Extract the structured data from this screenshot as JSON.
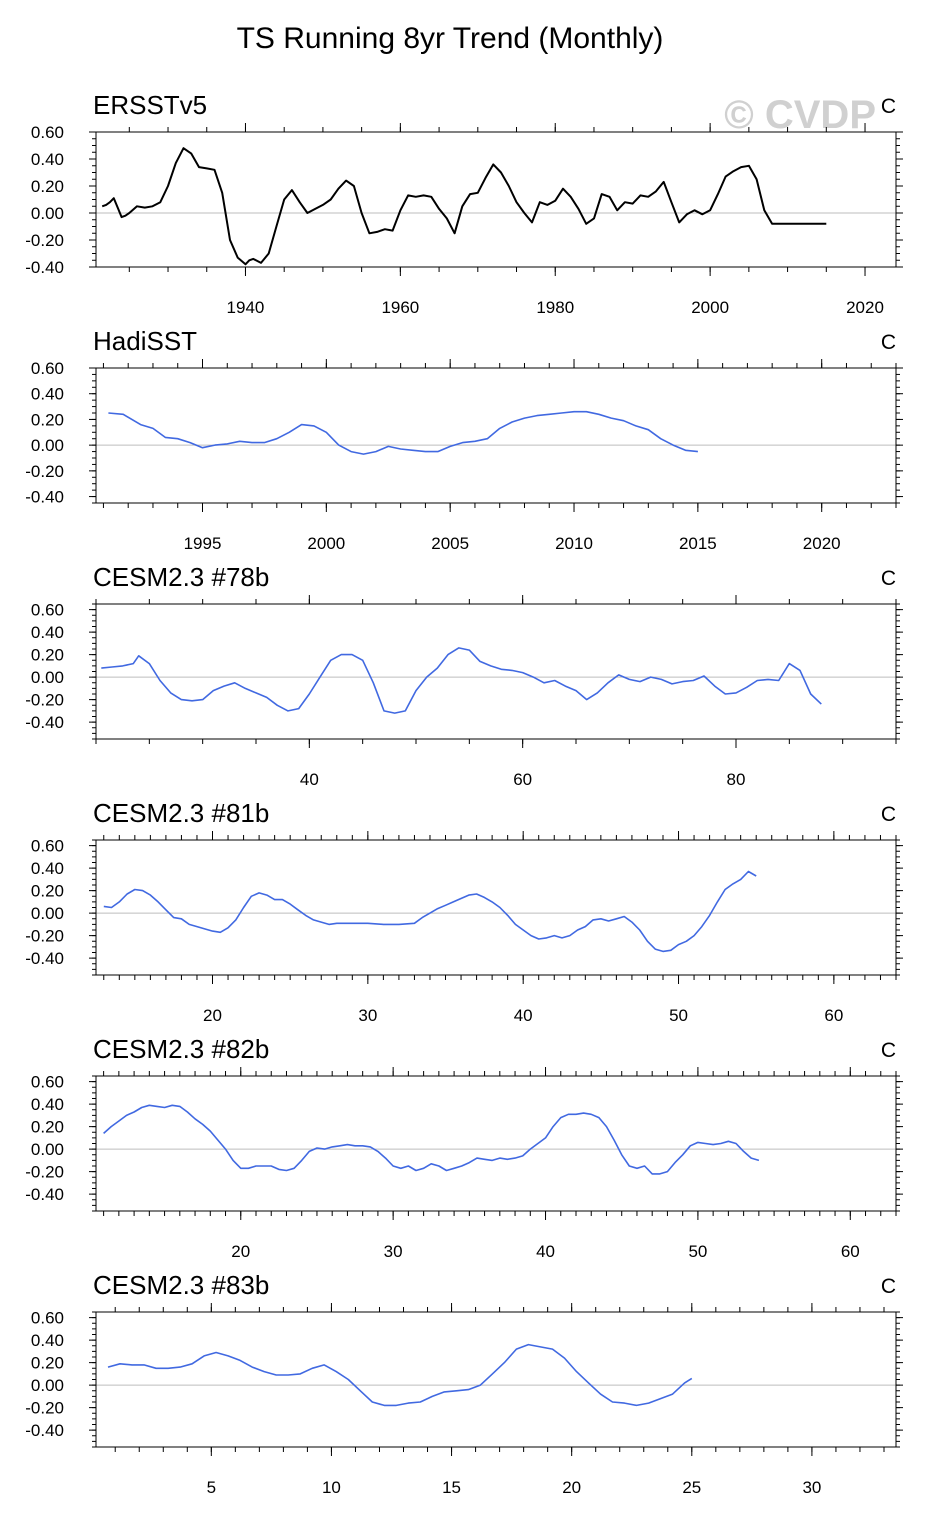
{
  "title": "TS Running 8yr Trend (Monthly)",
  "watermark": "© CVDP",
  "chart_data": [
    {
      "type": "line",
      "title": "ERSSTv5",
      "units": "C",
      "line_color": "#000000",
      "xlim": [
        1920.7,
        2024
      ],
      "ylim": [
        -0.4,
        0.6
      ],
      "yticks": [
        -0.4,
        -0.2,
        0.0,
        0.2,
        0.4,
        0.6
      ],
      "ytick_labels": [
        "-0.40",
        "-0.20",
        "0.00",
        "0.20",
        "0.40",
        "0.60"
      ],
      "xticks": [
        1940,
        1960,
        1980,
        2000,
        2020
      ],
      "xtick_labels": [
        "1940",
        "1960",
        "1980",
        "2000",
        "2020"
      ],
      "x_minor_step": 5,
      "x": [
        1921.5,
        1922,
        1922.5,
        1923,
        1923.5,
        1924,
        1924.5,
        1925,
        1926,
        1927,
        1928,
        1929,
        1930,
        1931,
        1932,
        1933,
        1934,
        1935,
        1936,
        1937,
        1938,
        1939,
        1940,
        1940.5,
        1941,
        1942,
        1943,
        1944,
        1945,
        1946,
        1947,
        1948,
        1949,
        1950,
        1951,
        1952,
        1953,
        1954,
        1955,
        1956,
        1957,
        1958,
        1959,
        1960,
        1961,
        1962,
        1963,
        1964,
        1965,
        1966,
        1967,
        1968,
        1969,
        1970,
        1971,
        1972,
        1973,
        1974,
        1975,
        1976,
        1977,
        1978,
        1979,
        1980,
        1981,
        1982,
        1983,
        1984,
        1985,
        1986,
        1987,
        1988,
        1989,
        1990,
        1991,
        1992,
        1993,
        1994,
        1995,
        1996,
        1997,
        1998,
        1999,
        2000,
        2001,
        2002,
        2003,
        2004,
        2005,
        2006,
        2007,
        2008,
        2009,
        2010,
        2011,
        2012,
        2013,
        2014,
        2015
      ],
      "y": [
        0.05,
        0.06,
        0.08,
        0.11,
        0.04,
        -0.03,
        -0.02,
        0.0,
        0.05,
        0.04,
        0.05,
        0.08,
        0.2,
        0.37,
        0.48,
        0.44,
        0.34,
        0.33,
        0.32,
        0.15,
        -0.2,
        -0.33,
        -0.38,
        -0.35,
        -0.34,
        -0.37,
        -0.3,
        -0.1,
        0.1,
        0.17,
        0.08,
        0.0,
        0.03,
        0.06,
        0.1,
        0.18,
        0.24,
        0.2,
        0.0,
        -0.15,
        -0.14,
        -0.12,
        -0.13,
        0.02,
        0.13,
        0.12,
        0.13,
        0.12,
        0.03,
        -0.04,
        -0.15,
        0.05,
        0.14,
        0.15,
        0.26,
        0.36,
        0.3,
        0.2,
        0.08,
        0.0,
        -0.07,
        0.08,
        0.06,
        0.09,
        0.18,
        0.12,
        0.03,
        -0.08,
        -0.04,
        0.14,
        0.12,
        0.02,
        0.08,
        0.07,
        0.13,
        0.12,
        0.16,
        0.23,
        0.08,
        -0.07,
        -0.01,
        0.02,
        -0.01,
        0.02,
        0.14,
        0.27,
        0.31,
        0.34,
        0.35,
        0.25,
        0.02,
        -0.08,
        -0.08,
        -0.08,
        -0.08,
        -0.08,
        -0.08,
        -0.08,
        -0.08
      ]
    },
    {
      "type": "line",
      "title": "HadiSST",
      "units": "C",
      "line_color": "#4169e1",
      "xlim": [
        1990.7,
        2023
      ],
      "ylim": [
        -0.45,
        0.6
      ],
      "yticks": [
        -0.4,
        -0.2,
        0.0,
        0.2,
        0.4,
        0.6
      ],
      "ytick_labels": [
        "-0.40",
        "-0.20",
        "0.00",
        "0.20",
        "0.40",
        "0.60"
      ],
      "xticks": [
        1995,
        2000,
        2005,
        2010,
        2015,
        2020
      ],
      "xtick_labels": [
        "1995",
        "2000",
        "2005",
        "2010",
        "2015",
        "2020"
      ],
      "x_minor_step": 1,
      "x": [
        1991.2,
        1991.8,
        1992.5,
        1993,
        1993.5,
        1994,
        1994.5,
        1995,
        1995.5,
        1996,
        1996.5,
        1997,
        1997.5,
        1998,
        1998.5,
        1999,
        1999.5,
        2000,
        2000.5,
        2001,
        2001.5,
        2002,
        2002.5,
        2003,
        2003.5,
        2004,
        2004.5,
        2005,
        2005.5,
        2006,
        2006.5,
        2007,
        2007.5,
        2008,
        2008.5,
        2009,
        2009.5,
        2010,
        2010.5,
        2011,
        2011.5,
        2012,
        2012.5,
        2013,
        2013.5,
        2014,
        2014.5,
        2015
      ],
      "y": [
        0.25,
        0.24,
        0.16,
        0.13,
        0.06,
        0.05,
        0.02,
        -0.02,
        0.0,
        0.01,
        0.03,
        0.02,
        0.02,
        0.05,
        0.1,
        0.16,
        0.15,
        0.1,
        0.0,
        -0.05,
        -0.07,
        -0.05,
        -0.01,
        -0.03,
        -0.04,
        -0.05,
        -0.05,
        -0.01,
        0.02,
        0.03,
        0.05,
        0.13,
        0.18,
        0.21,
        0.23,
        0.24,
        0.25,
        0.26,
        0.26,
        0.24,
        0.21,
        0.19,
        0.15,
        0.12,
        0.05,
        0.0,
        -0.04,
        -0.05
      ]
    },
    {
      "type": "line",
      "title": "CESM2.3 #78b",
      "units": "C",
      "line_color": "#4169e1",
      "xlim": [
        20,
        95
      ],
      "ylim": [
        -0.55,
        0.65
      ],
      "yticks": [
        -0.4,
        -0.2,
        0.0,
        0.2,
        0.4,
        0.6
      ],
      "ytick_labels": [
        "-0.40",
        "-0.20",
        "0.00",
        "0.20",
        "0.40",
        "0.60"
      ],
      "xticks": [
        40,
        60,
        80
      ],
      "xtick_labels": [
        "40",
        "60",
        "80"
      ],
      "x_minor_step": 5,
      "x": [
        20.5,
        21.5,
        22.5,
        23.5,
        24,
        25,
        26,
        27,
        28,
        29,
        30,
        31,
        32,
        33,
        34,
        35,
        36,
        37,
        38,
        39,
        40,
        41,
        42,
        43,
        44,
        45,
        46,
        47,
        48,
        49,
        50,
        51,
        52,
        53,
        54,
        55,
        56,
        57,
        58,
        59,
        60,
        61,
        62,
        63,
        64,
        65,
        66,
        67,
        68,
        69,
        70,
        71,
        72,
        73,
        74,
        75,
        76,
        77,
        78,
        79,
        80,
        81,
        82,
        83,
        84,
        85,
        86,
        87,
        88
      ],
      "y": [
        0.08,
        0.09,
        0.1,
        0.12,
        0.19,
        0.12,
        -0.03,
        -0.14,
        -0.2,
        -0.21,
        -0.2,
        -0.12,
        -0.08,
        -0.05,
        -0.1,
        -0.14,
        -0.18,
        -0.25,
        -0.3,
        -0.28,
        -0.15,
        0.0,
        0.15,
        0.2,
        0.2,
        0.15,
        -0.05,
        -0.3,
        -0.32,
        -0.3,
        -0.12,
        0.0,
        0.08,
        0.2,
        0.26,
        0.24,
        0.14,
        0.1,
        0.07,
        0.06,
        0.04,
        0.0,
        -0.05,
        -0.03,
        -0.08,
        -0.12,
        -0.2,
        -0.14,
        -0.05,
        0.02,
        -0.02,
        -0.04,
        0.0,
        -0.02,
        -0.06,
        -0.04,
        -0.03,
        0.01,
        -0.08,
        -0.15,
        -0.14,
        -0.09,
        -0.03,
        -0.02,
        -0.03,
        0.12,
        0.06,
        -0.15,
        -0.24
      ]
    },
    {
      "type": "line",
      "title": "CESM2.3 #81b",
      "units": "C",
      "line_color": "#4169e1",
      "xlim": [
        12.5,
        64
      ],
      "ylim": [
        -0.55,
        0.65
      ],
      "yticks": [
        -0.4,
        -0.2,
        0.0,
        0.2,
        0.4,
        0.6
      ],
      "ytick_labels": [
        "-0.40",
        "-0.20",
        "0.00",
        "0.20",
        "0.40",
        "0.60"
      ],
      "xticks": [
        20,
        30,
        40,
        50,
        60
      ],
      "xtick_labels": [
        "20",
        "30",
        "40",
        "50",
        "60"
      ],
      "x_minor_step": 1,
      "x": [
        13,
        13.5,
        14,
        14.5,
        15,
        15.5,
        16,
        16.5,
        17,
        17.5,
        18,
        18.5,
        19,
        19.5,
        20,
        20.5,
        21,
        21.5,
        22,
        22.5,
        23,
        23.5,
        24,
        24.5,
        25,
        25.5,
        26,
        26.5,
        27,
        27.5,
        28,
        29,
        30,
        31,
        32,
        33,
        33.5,
        34,
        34.5,
        35,
        35.5,
        36,
        36.5,
        37,
        37.5,
        38,
        38.5,
        39,
        39.5,
        40,
        40.5,
        41,
        41.5,
        42,
        42.5,
        43,
        43.5,
        44,
        44.5,
        45,
        45.5,
        46,
        46.5,
        47,
        47.5,
        48,
        48.5,
        49,
        49.5,
        50,
        50.5,
        51,
        51.5,
        52,
        52.5,
        53,
        53.5,
        54,
        54.5,
        55
      ],
      "y": [
        0.06,
        0.05,
        0.1,
        0.17,
        0.21,
        0.2,
        0.16,
        0.1,
        0.03,
        -0.04,
        -0.05,
        -0.1,
        -0.12,
        -0.14,
        -0.16,
        -0.17,
        -0.13,
        -0.06,
        0.05,
        0.15,
        0.18,
        0.16,
        0.12,
        0.12,
        0.08,
        0.03,
        -0.02,
        -0.06,
        -0.08,
        -0.1,
        -0.09,
        -0.09,
        -0.09,
        -0.1,
        -0.1,
        -0.09,
        -0.04,
        0.0,
        0.04,
        0.07,
        0.1,
        0.13,
        0.16,
        0.17,
        0.14,
        0.1,
        0.05,
        -0.02,
        -0.1,
        -0.15,
        -0.2,
        -0.23,
        -0.22,
        -0.2,
        -0.22,
        -0.2,
        -0.15,
        -0.12,
        -0.06,
        -0.05,
        -0.07,
        -0.05,
        -0.03,
        -0.08,
        -0.15,
        -0.25,
        -0.32,
        -0.34,
        -0.33,
        -0.28,
        -0.25,
        -0.2,
        -0.12,
        -0.02,
        0.1,
        0.21,
        0.26,
        0.3,
        0.37,
        0.33
      ]
    },
    {
      "type": "line",
      "title": "CESM2.3 #82b",
      "units": "C",
      "line_color": "#4169e1",
      "xlim": [
        10.5,
        63
      ],
      "ylim": [
        -0.55,
        0.65
      ],
      "yticks": [
        -0.4,
        -0.2,
        0.0,
        0.2,
        0.4,
        0.6
      ],
      "ytick_labels": [
        "-0.40",
        "-0.20",
        "0.00",
        "0.20",
        "0.40",
        "0.60"
      ],
      "xticks": [
        20,
        30,
        40,
        50,
        60
      ],
      "xtick_labels": [
        "20",
        "30",
        "40",
        "50",
        "60"
      ],
      "x_minor_step": 1,
      "x": [
        11,
        11.5,
        12,
        12.5,
        13,
        13.5,
        14,
        14.5,
        15,
        15.5,
        16,
        16.5,
        17,
        17.5,
        18,
        18.5,
        19,
        19.5,
        20,
        20.5,
        21,
        21.5,
        22,
        22.5,
        23,
        23.5,
        24,
        24.5,
        25,
        25.5,
        26,
        26.5,
        27,
        27.5,
        28,
        28.5,
        29,
        29.5,
        30,
        30.5,
        31,
        31.5,
        32,
        32.5,
        33,
        33.5,
        34,
        34.5,
        35,
        35.5,
        36,
        36.5,
        37,
        37.5,
        38,
        38.5,
        39,
        39.5,
        40,
        40.5,
        41,
        41.5,
        42,
        42.5,
        43,
        43.5,
        44,
        44.5,
        45,
        45.5,
        46,
        46.5,
        47,
        47.5,
        48,
        48.5,
        49,
        49.5,
        50,
        50.5,
        51,
        51.5,
        52,
        52.5,
        53,
        53.5,
        54
      ],
      "y": [
        0.14,
        0.2,
        0.25,
        0.3,
        0.33,
        0.37,
        0.39,
        0.38,
        0.37,
        0.39,
        0.38,
        0.33,
        0.27,
        0.22,
        0.16,
        0.08,
        0.0,
        -0.1,
        -0.17,
        -0.17,
        -0.15,
        -0.15,
        -0.15,
        -0.18,
        -0.19,
        -0.17,
        -0.1,
        -0.02,
        0.01,
        0.0,
        0.02,
        0.03,
        0.04,
        0.03,
        0.03,
        0.02,
        -0.02,
        -0.08,
        -0.15,
        -0.17,
        -0.15,
        -0.19,
        -0.17,
        -0.13,
        -0.15,
        -0.19,
        -0.17,
        -0.15,
        -0.12,
        -0.08,
        -0.09,
        -0.1,
        -0.08,
        -0.09,
        -0.08,
        -0.06,
        0.0,
        0.05,
        0.1,
        0.2,
        0.28,
        0.31,
        0.31,
        0.32,
        0.31,
        0.28,
        0.2,
        0.08,
        -0.05,
        -0.15,
        -0.17,
        -0.15,
        -0.22,
        -0.22,
        -0.2,
        -0.12,
        -0.05,
        0.03,
        0.06,
        0.05,
        0.04,
        0.05,
        0.07,
        0.05,
        -0.02,
        -0.08,
        -0.1
      ]
    },
    {
      "type": "line",
      "title": "CESM2.3 #83b",
      "units": "C",
      "line_color": "#4169e1",
      "xlim": [
        0.2,
        33.5
      ],
      "ylim": [
        -0.55,
        0.65
      ],
      "yticks": [
        -0.4,
        -0.2,
        0.0,
        0.2,
        0.4,
        0.6
      ],
      "ytick_labels": [
        "-0.40",
        "-0.20",
        "0.00",
        "0.20",
        "0.40",
        "0.60"
      ],
      "xticks": [
        5,
        10,
        15,
        20,
        25,
        30
      ],
      "xtick_labels": [
        "5",
        "10",
        "15",
        "20",
        "25",
        "30"
      ],
      "x_minor_step": 1,
      "x": [
        0.7,
        1.2,
        1.7,
        2.2,
        2.7,
        3.2,
        3.7,
        4.2,
        4.7,
        5.2,
        5.7,
        6.2,
        6.7,
        7.2,
        7.7,
        8.2,
        8.7,
        9.2,
        9.7,
        10.2,
        10.7,
        11.2,
        11.7,
        12.2,
        12.7,
        13.2,
        13.7,
        14.2,
        14.7,
        15.2,
        15.7,
        16.2,
        16.7,
        17.2,
        17.7,
        18.2,
        18.7,
        19.2,
        19.7,
        20.2,
        20.7,
        21.2,
        21.7,
        22.2,
        22.7,
        23.2,
        23.7,
        24.2,
        24.7,
        25
      ],
      "y": [
        0.16,
        0.19,
        0.18,
        0.18,
        0.15,
        0.15,
        0.16,
        0.19,
        0.26,
        0.29,
        0.26,
        0.22,
        0.16,
        0.12,
        0.09,
        0.09,
        0.1,
        0.15,
        0.18,
        0.12,
        0.05,
        -0.05,
        -0.15,
        -0.18,
        -0.18,
        -0.16,
        -0.15,
        -0.1,
        -0.06,
        -0.05,
        -0.04,
        0.0,
        0.1,
        0.2,
        0.32,
        0.36,
        0.34,
        0.32,
        0.24,
        0.12,
        0.02,
        -0.08,
        -0.15,
        -0.16,
        -0.18,
        -0.16,
        -0.12,
        -0.08,
        0.02,
        0.06
      ]
    }
  ]
}
